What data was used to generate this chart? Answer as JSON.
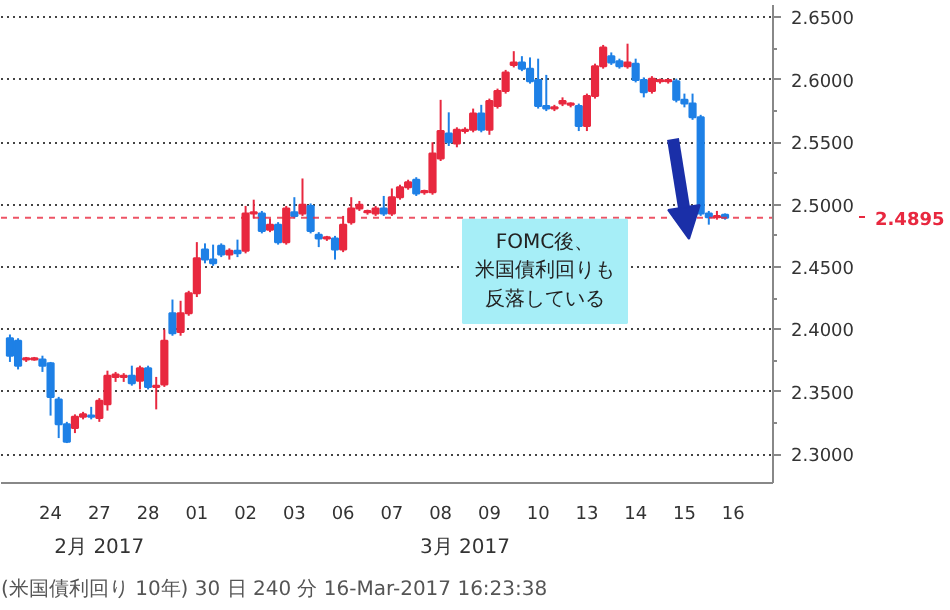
{
  "chart_data": {
    "type": "candlestick",
    "categories": [
      null,
      null,
      null,
      null,
      null,
      "24",
      null,
      null,
      null,
      null,
      null,
      "27",
      null,
      null,
      null,
      null,
      null,
      "28",
      null,
      null,
      null,
      null,
      null,
      "01",
      null,
      null,
      null,
      null,
      null,
      "02",
      null,
      null,
      null,
      null,
      null,
      "03",
      null,
      null,
      null,
      null,
      null,
      "06",
      null,
      null,
      null,
      null,
      null,
      "07",
      null,
      null,
      null,
      null,
      null,
      "08",
      null,
      null,
      null,
      null,
      null,
      "09",
      null,
      null,
      null,
      null,
      null,
      "10",
      null,
      null,
      null,
      null,
      null,
      "13",
      null,
      null,
      null,
      null,
      null,
      "14",
      null,
      null,
      null,
      null,
      null,
      "15",
      null,
      null,
      null,
      null,
      null,
      "16",
      null,
      null,
      null,
      null
    ],
    "ohlc": [
      [
        2.393,
        2.396,
        2.374,
        2.379
      ],
      [
        2.391,
        2.393,
        2.368,
        2.371
      ],
      [
        2.376,
        2.378,
        2.374,
        2.377
      ],
      [
        2.376,
        2.378,
        2.375,
        2.377
      ],
      [
        2.376,
        2.379,
        2.366,
        2.371
      ],
      [
        2.373,
        2.374,
        2.331,
        2.346
      ],
      [
        2.344,
        2.346,
        2.313,
        2.324
      ],
      [
        2.324,
        2.326,
        2.309,
        2.31
      ],
      [
        2.321,
        2.332,
        2.317,
        2.33
      ],
      [
        2.33,
        2.334,
        2.328,
        2.332
      ],
      [
        2.331,
        2.338,
        2.328,
        2.33
      ],
      [
        2.329,
        2.345,
        2.326,
        2.343
      ],
      [
        2.34,
        2.367,
        2.335,
        2.363
      ],
      [
        2.362,
        2.366,
        2.358,
        2.364
      ],
      [
        2.362,
        2.365,
        2.358,
        2.363
      ],
      [
        2.363,
        2.371,
        2.355,
        2.357
      ],
      [
        2.359,
        2.371,
        2.352,
        2.369
      ],
      [
        2.369,
        2.371,
        2.352,
        2.354
      ],
      [
        2.354,
        2.362,
        2.336,
        2.355
      ],
      [
        2.356,
        2.4,
        2.354,
        2.391
      ],
      [
        2.413,
        2.424,
        2.395,
        2.397
      ],
      [
        2.398,
        2.423,
        2.395,
        2.413
      ],
      [
        2.413,
        2.431,
        2.411,
        2.429
      ],
      [
        2.429,
        2.47,
        2.426,
        2.457
      ],
      [
        2.464,
        2.469,
        2.453,
        2.456
      ],
      [
        2.456,
        2.468,
        2.451,
        2.453
      ],
      [
        2.467,
        2.469,
        2.458,
        2.46
      ],
      [
        2.46,
        2.465,
        2.456,
        2.463
      ],
      [
        2.463,
        2.472,
        2.458,
        2.461
      ],
      [
        2.463,
        2.499,
        2.461,
        2.493
      ],
      [
        2.493,
        2.504,
        2.489,
        2.494
      ],
      [
        2.493,
        2.495,
        2.477,
        2.479
      ],
      [
        2.48,
        2.489,
        2.478,
        2.484
      ],
      [
        2.484,
        2.486,
        2.468,
        2.47
      ],
      [
        2.47,
        2.499,
        2.468,
        2.497
      ],
      [
        2.494,
        2.506,
        2.489,
        2.491
      ],
      [
        2.493,
        2.521,
        2.491,
        2.5
      ],
      [
        2.499,
        2.501,
        2.477,
        2.479
      ],
      [
        2.476,
        2.478,
        2.466,
        2.473
      ],
      [
        2.473,
        2.475,
        2.471,
        2.474
      ],
      [
        2.473,
        2.475,
        2.456,
        2.464
      ],
      [
        2.464,
        2.491,
        2.462,
        2.484
      ],
      [
        2.486,
        2.506,
        2.484,
        2.497
      ],
      [
        2.497,
        2.503,
        2.495,
        2.5
      ],
      [
        2.494,
        2.496,
        2.492,
        2.495
      ],
      [
        2.493,
        2.499,
        2.491,
        2.497
      ],
      [
        2.497,
        2.507,
        2.491,
        2.493
      ],
      [
        2.493,
        2.513,
        2.491,
        2.506
      ],
      [
        2.506,
        2.516,
        2.504,
        2.514
      ],
      [
        2.514,
        2.52,
        2.512,
        2.518
      ],
      [
        2.52,
        2.522,
        2.507,
        2.509
      ],
      [
        2.51,
        2.512,
        2.508,
        2.511
      ],
      [
        2.51,
        2.55,
        2.508,
        2.541
      ],
      [
        2.537,
        2.584,
        2.535,
        2.559
      ],
      [
        2.557,
        2.574,
        2.547,
        2.55
      ],
      [
        2.549,
        2.562,
        2.546,
        2.56
      ],
      [
        2.559,
        2.562,
        2.557,
        2.56
      ],
      [
        2.56,
        2.577,
        2.558,
        2.573
      ],
      [
        2.573,
        2.58,
        2.558,
        2.56
      ],
      [
        2.56,
        2.585,
        2.556,
        2.583
      ],
      [
        2.579,
        2.593,
        2.577,
        2.591
      ],
      [
        2.591,
        2.608,
        2.589,
        2.606
      ],
      [
        2.612,
        2.623,
        2.61,
        2.614
      ],
      [
        2.614,
        2.619,
        2.607,
        2.609
      ],
      [
        2.609,
        2.618,
        2.597,
        2.599
      ],
      [
        2.6,
        2.617,
        2.577,
        2.579
      ],
      [
        2.579,
        2.604,
        2.575,
        2.577
      ],
      [
        2.577,
        2.58,
        2.575,
        2.578
      ],
      [
        2.581,
        2.586,
        2.579,
        2.583
      ],
      [
        2.58,
        2.582,
        2.578,
        2.581
      ],
      [
        2.579,
        2.581,
        2.559,
        2.563
      ],
      [
        2.563,
        2.589,
        2.559,
        2.587
      ],
      [
        2.587,
        2.613,
        2.585,
        2.611
      ],
      [
        2.611,
        2.628,
        2.609,
        2.626
      ],
      [
        2.619,
        2.622,
        2.612,
        2.614
      ],
      [
        2.615,
        2.617,
        2.609,
        2.611
      ],
      [
        2.611,
        2.629,
        2.609,
        2.614
      ],
      [
        2.613,
        2.617,
        2.598,
        2.6
      ],
      [
        2.6,
        2.602,
        2.586,
        2.59
      ],
      [
        2.591,
        2.603,
        2.589,
        2.601
      ],
      [
        2.599,
        2.601,
        2.597,
        2.6
      ],
      [
        2.599,
        2.601,
        2.597,
        2.6
      ],
      [
        2.599,
        2.601,
        2.582,
        2.584
      ],
      [
        2.584,
        2.589,
        2.578,
        2.581
      ],
      [
        2.581,
        2.589,
        2.568,
        2.57
      ],
      [
        2.57,
        2.572,
        2.491,
        2.493
      ],
      [
        2.493,
        2.495,
        2.484,
        2.49
      ],
      [
        2.49,
        2.495,
        2.488,
        2.491
      ],
      [
        2.492,
        2.493,
        2.488,
        2.4895
      ],
      null,
      null,
      null,
      null,
      null
    ],
    "colors": [
      "#1e80e6",
      "#1e80e6",
      "#e8283f",
      "#e8283f",
      "#1e80e6",
      "#1e80e6",
      "#1e80e6",
      "#1e80e6",
      "#e8283f",
      "#e8283f",
      "#1e80e6",
      "#e8283f",
      "#e8283f",
      "#e8283f",
      "#e8283f",
      "#1e80e6",
      "#e8283f",
      "#1e80e6",
      "#e8283f",
      "#e8283f",
      "#1e80e6",
      "#e8283f",
      "#e8283f",
      "#e8283f",
      "#1e80e6",
      "#1e80e6",
      "#1e80e6",
      "#e8283f",
      "#1e80e6",
      "#e8283f",
      "#e8283f",
      "#1e80e6",
      "#e8283f",
      "#1e80e6",
      "#e8283f",
      "#1e80e6",
      "#e8283f",
      "#1e80e6",
      "#1e80e6",
      "#e8283f",
      "#1e80e6",
      "#e8283f",
      "#e8283f",
      "#e8283f",
      "#e8283f",
      "#e8283f",
      "#1e80e6",
      "#e8283f",
      "#e8283f",
      "#e8283f",
      "#1e80e6",
      "#e8283f",
      "#e8283f",
      "#e8283f",
      "#1e80e6",
      "#e8283f",
      "#e8283f",
      "#e8283f",
      "#1e80e6",
      "#e8283f",
      "#e8283f",
      "#e8283f",
      "#e8283f",
      "#1e80e6",
      "#1e80e6",
      "#1e80e6",
      "#1e80e6",
      "#e8283f",
      "#e8283f",
      "#e8283f",
      "#1e80e6",
      "#e8283f",
      "#e8283f",
      "#e8283f",
      "#1e80e6",
      "#1e80e6",
      "#e8283f",
      "#1e80e6",
      "#1e80e6",
      "#e8283f",
      "#e8283f",
      "#e8283f",
      "#1e80e6",
      "#1e80e6",
      "#1e80e6",
      "#1e80e6",
      "#1e80e6",
      "#e8283f",
      "#1e80e6",
      null,
      null,
      null,
      null,
      null
    ],
    "ylim": [
      2.277,
      2.66
    ],
    "yticks": [
      {
        "value": 2.3,
        "label": "2.3000"
      },
      {
        "value": 2.35,
        "label": "2.3500"
      },
      {
        "value": 2.4,
        "label": "2.4000"
      },
      {
        "value": 2.45,
        "label": "2.4500"
      },
      {
        "value": 2.5,
        "label": "2.5000"
      },
      {
        "value": 2.55,
        "label": "2.5500"
      },
      {
        "value": 2.6,
        "label": "2.6000"
      },
      {
        "value": 2.65,
        "label": "2.6500"
      }
    ],
    "grid": "y",
    "ref_lines": [
      {
        "axis": "y",
        "value": 2.4895,
        "label": "2.4895",
        "color": "#e8283f"
      }
    ],
    "annotations": [
      "FOMC後、米国債利回りも反落している",
      "2月 2017",
      "3月 2017",
      "(米国債利回り 10年)  30 日 240 分  16-Mar-2017 16:23:38"
    ]
  }
}
